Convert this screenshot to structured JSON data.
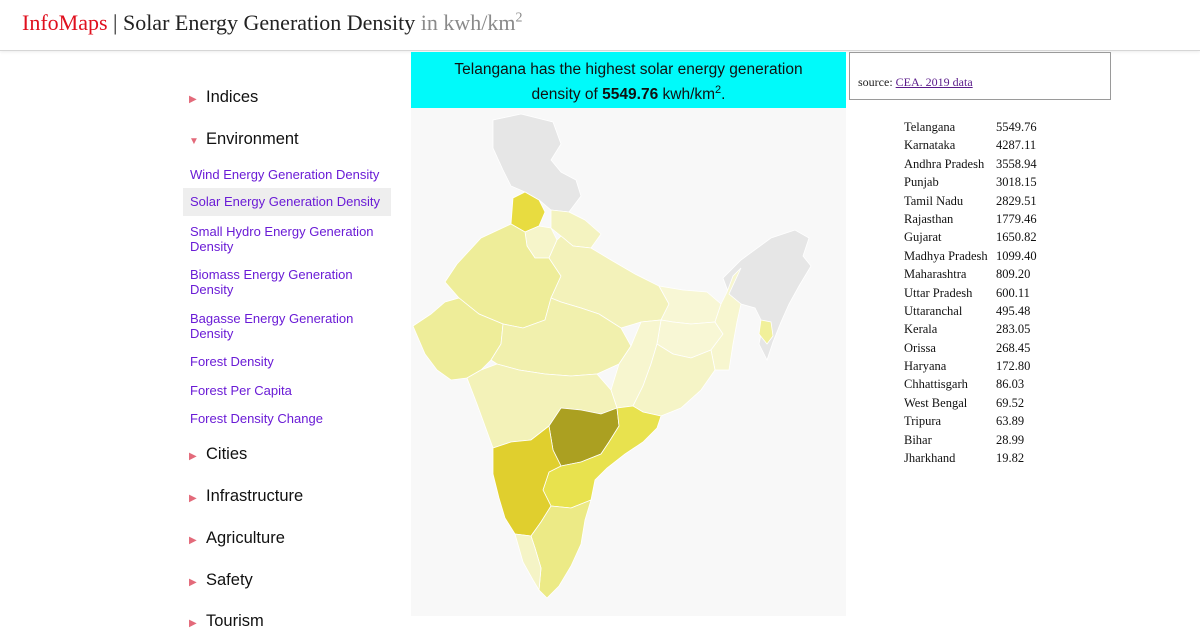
{
  "header": {
    "brand": "InfoMaps",
    "separator": " | ",
    "title": "Solar Energy Generation Density",
    "unit_prefix": "in kwh/km",
    "unit_sup": "2"
  },
  "sidebar": {
    "categories_top": [
      {
        "label": "Indices",
        "expanded": false
      },
      {
        "label": "Environment",
        "expanded": true
      }
    ],
    "sub_items": [
      {
        "label": "Wind Energy Generation Density",
        "active": false
      },
      {
        "label": "Solar Energy Generation Density",
        "active": true
      },
      {
        "label": "Small Hydro Energy Generation Density",
        "active": false
      },
      {
        "label": "Biomass Energy Generation Density",
        "active": false
      },
      {
        "label": "Bagasse Energy Generation Density",
        "active": false
      },
      {
        "label": "Forest Density",
        "active": false
      },
      {
        "label": "Forest Per Capita",
        "active": false
      },
      {
        "label": "Forest Density Change",
        "active": false
      }
    ],
    "categories_bottom": [
      {
        "label": "Cities"
      },
      {
        "label": "Infrastructure"
      },
      {
        "label": "Agriculture"
      },
      {
        "label": "Safety"
      },
      {
        "label": "Tourism"
      }
    ]
  },
  "banner": {
    "line1": "Telangana has the highest solar energy generation",
    "line2_prefix": "density of ",
    "value": "5549.76",
    "unit": " kwh/km",
    "unit_sup": "2",
    "suffix": "."
  },
  "source": {
    "prefix": "source: ",
    "link_text": "CEA. 2019 data"
  },
  "ranking": [
    {
      "state": "Telangana",
      "value": "5549.76"
    },
    {
      "state": "Karnataka",
      "value": "4287.11"
    },
    {
      "state": "Andhra Pradesh",
      "value": "3558.94"
    },
    {
      "state": "Punjab",
      "value": "3018.15"
    },
    {
      "state": "Tamil Nadu",
      "value": "2829.51"
    },
    {
      "state": "Rajasthan",
      "value": "1779.46"
    },
    {
      "state": "Gujarat",
      "value": "1650.82"
    },
    {
      "state": "Madhya Pradesh",
      "value": "1099.40"
    },
    {
      "state": "Maharashtra",
      "value": "809.20"
    },
    {
      "state": "Uttar Pradesh",
      "value": "600.11"
    },
    {
      "state": "Uttaranchal",
      "value": "495.48"
    },
    {
      "state": "Kerala",
      "value": "283.05"
    },
    {
      "state": "Orissa",
      "value": "268.45"
    },
    {
      "state": "Haryana",
      "value": "172.80"
    },
    {
      "state": "Chhattisgarh",
      "value": "86.03"
    },
    {
      "state": "West Bengal",
      "value": "69.52"
    },
    {
      "state": "Tripura",
      "value": "63.89"
    },
    {
      "state": "Bihar",
      "value": "28.99"
    },
    {
      "state": "Jharkhand",
      "value": "19.82"
    }
  ],
  "map": {
    "no_data_color": "#e6e6e6",
    "scale_colors": [
      "#f7f6cf",
      "#eeed99",
      "#e0da50",
      "#aba021"
    ],
    "state_fills": {
      "Telangana": "#aba021",
      "Karnataka": "#e0cf2e",
      "Andhra Pradesh": "#e8e24e",
      "Punjab": "#e8dc40",
      "Tamil Nadu": "#ecea86",
      "Rajasthan": "#eeed99",
      "Gujarat": "#eeed99",
      "Madhya Pradesh": "#f1f0ad",
      "Maharashtra": "#f3f2b8",
      "Uttar Pradesh": "#f3f2ba",
      "Uttaranchal": "#f4f3c0",
      "Kerala": "#f5f4c6",
      "Orissa": "#f5f4c6",
      "Haryana": "#f6f5ca",
      "Chhattisgarh": "#f7f6cf",
      "West Bengal": "#f7f6cf",
      "Tripura": "#f1f09a",
      "Bihar": "#f8f7d5",
      "Jharkhand": "#f8f7d5"
    }
  }
}
